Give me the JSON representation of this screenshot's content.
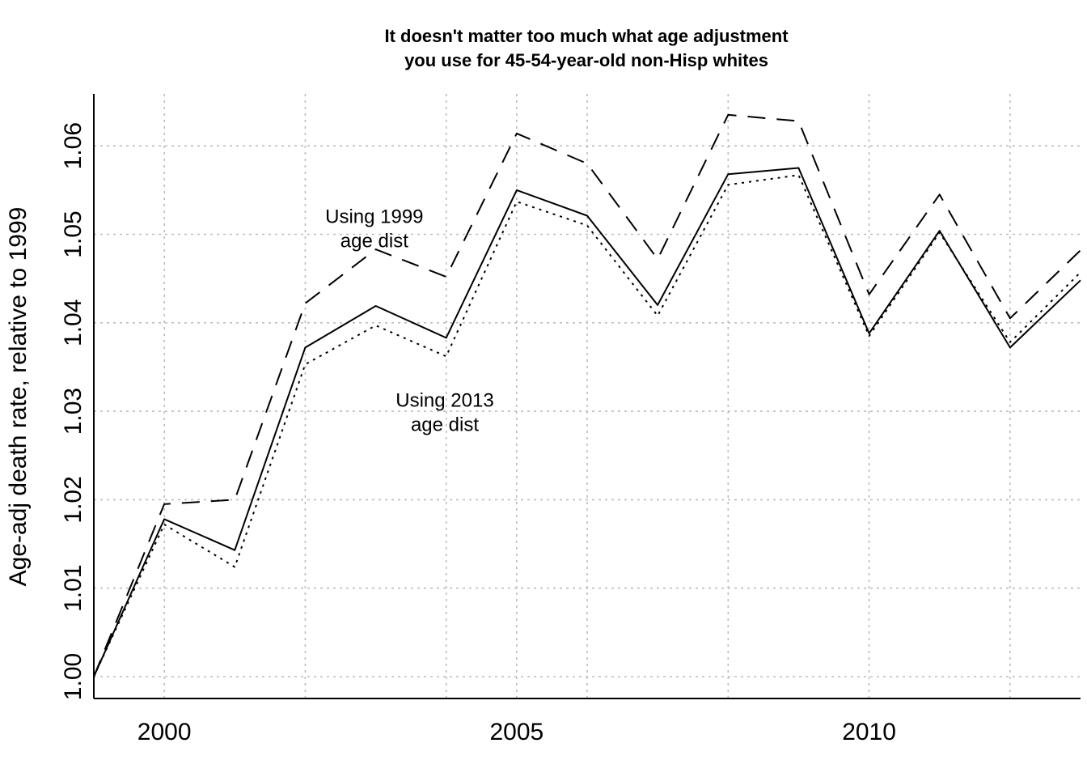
{
  "chart_data": {
    "type": "line",
    "title": [
      "It doesn't matter too much what age adjustment",
      "you use for 45-54-year-old non-Hisp whites"
    ],
    "xlabel": "",
    "ylabel": "Age-adj death rate, relative to 1999",
    "x": [
      1999,
      2000,
      2001,
      2002,
      2003,
      2004,
      2005,
      2006,
      2007,
      2008,
      2009,
      2010,
      2011,
      2012,
      2013
    ],
    "xlim": [
      1999,
      2013
    ],
    "ylim": [
      1.0,
      1.0625
    ],
    "x_ticks": [
      "2000",
      "2005",
      "2010"
    ],
    "x_tick_values": [
      2000,
      2005,
      2010
    ],
    "y_ticks": [
      "1.00",
      "1.01",
      "1.02",
      "1.03",
      "1.04",
      "1.05",
      "1.06"
    ],
    "y_tick_values": [
      1.0,
      1.01,
      1.02,
      1.03,
      1.04,
      1.05,
      1.06
    ],
    "x_grid": [
      2000,
      2002,
      2004,
      2005,
      2006,
      2008,
      2010,
      2012
    ],
    "grid": true,
    "legend": "none",
    "series": [
      {
        "style": "dashed",
        "values": [
          1.0,
          1.0195,
          1.02,
          1.0422,
          1.0483,
          1.0452,
          1.0614,
          1.058,
          1.0472,
          1.0635,
          1.0628,
          1.0432,
          1.0545,
          1.0405,
          1.0482
        ]
      },
      {
        "style": "solid",
        "values": [
          1.0,
          1.0178,
          1.0143,
          1.0372,
          1.0419,
          1.0383,
          1.055,
          1.0521,
          1.042,
          1.0568,
          1.0575,
          1.0388,
          1.0504,
          1.0372,
          1.0448
        ]
      },
      {
        "style": "dotted",
        "values": [
          1.0,
          1.0172,
          1.0124,
          1.0353,
          1.0397,
          1.0362,
          1.0537,
          1.051,
          1.0408,
          1.0556,
          1.0567,
          1.0385,
          1.0502,
          1.0378,
          1.0457
        ]
      }
    ],
    "annotations": [
      {
        "lines": [
          "Using 1999",
          "age dist"
        ],
        "x": 2002.98,
        "y": 1.0513
      },
      {
        "lines": [
          "Using 2013",
          "age dist"
        ],
        "x": 2003.98,
        "y": 1.0305
      }
    ]
  }
}
